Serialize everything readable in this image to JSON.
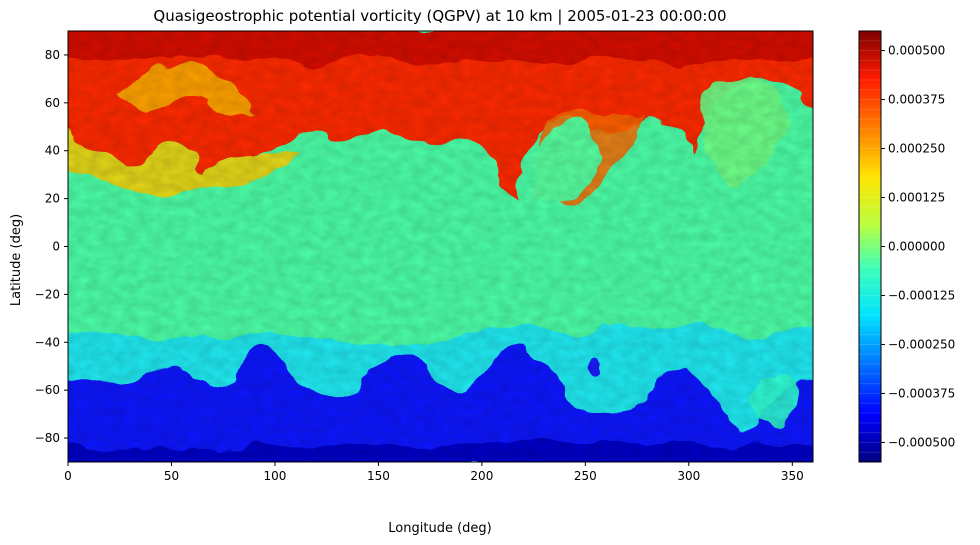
{
  "chart_data": {
    "type": "heatmap",
    "title": "Quasigeostrophic potential vorticity (QGPV) at 10 km | 2005-01-23 00:00:00",
    "xlabel": "Longitude (deg)",
    "ylabel": "Latitude (deg)",
    "xlim": [
      0,
      360
    ],
    "ylim": [
      -90,
      90
    ],
    "x_ticks": [
      0,
      50,
      100,
      150,
      200,
      250,
      300,
      350
    ],
    "x_tick_labels": [
      "0",
      "50",
      "100",
      "150",
      "200",
      "250",
      "300",
      "350"
    ],
    "y_ticks": [
      80,
      60,
      40,
      20,
      0,
      -20,
      -40,
      -60,
      -80
    ],
    "y_tick_labels": [
      "80",
      "60",
      "40",
      "20",
      "0",
      "−20",
      "−40",
      "−60",
      "−80"
    ],
    "colormap": "jet",
    "colorbar": {
      "vmin": -0.00055,
      "vmax": 0.00055,
      "ticks": [
        0.0005,
        0.000375,
        0.00025,
        0.000125,
        0.0,
        -0.000125,
        -0.00025,
        -0.000375,
        -0.0005
      ],
      "tick_labels": [
        "0.000500",
        "0.000375",
        "0.000250",
        "0.000125",
        "0.000000",
        "−0.000125",
        "−0.000250",
        "−0.000375",
        "−0.000500"
      ]
    },
    "field_description_levels": {
      "north_polar": 0.00045,
      "tropics": 2e-05,
      "south_polar": -0.00045
    },
    "grid": false
  }
}
